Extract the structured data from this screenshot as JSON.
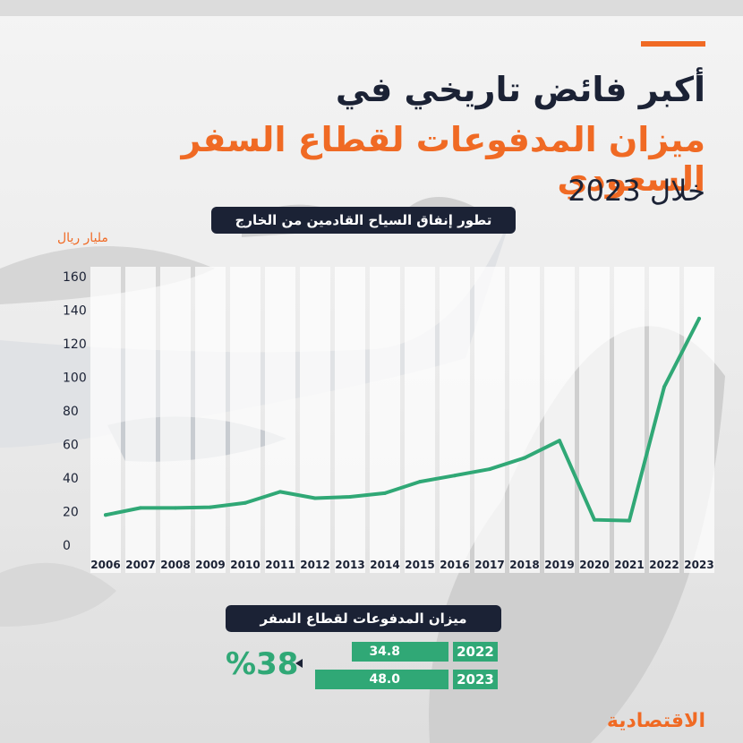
{
  "header": {
    "title_line1": "أكبر فائض تاريخي في",
    "title_line2": "ميزان المدفوعات لقطاع السفر السعودي",
    "title_line3": "خلال 2023"
  },
  "chart_label": "تطور إنفاق السياح القادمين من الخارج",
  "chart_unit": "مليار ريال",
  "chart_data": {
    "type": "line",
    "title": "تطور إنفاق السياح القادمين من الخارج",
    "ylabel": "مليار ريال",
    "xlabel": "",
    "categories": [
      "2006",
      "2007",
      "2008",
      "2009",
      "2010",
      "2011",
      "2012",
      "2013",
      "2014",
      "2015",
      "2016",
      "2017",
      "2018",
      "2019",
      "2020",
      "2021",
      "2022",
      "2023"
    ],
    "values": [
      18,
      22.2,
      22.2,
      22.6,
      25.2,
      31.8,
      28,
      28.8,
      31,
      37.8,
      41.5,
      45.3,
      52,
      62.3,
      15.1,
      14.6,
      94.3,
      135
    ],
    "ylim": [
      0,
      160
    ],
    "yticks": [
      "0",
      "20",
      "40",
      "60",
      "80",
      "100",
      "120",
      "140",
      "160"
    ],
    "grid": false,
    "line_color": "#30a876"
  },
  "balance": {
    "title": "ميزان المدفوعات لقطاع السفر",
    "rows": [
      {
        "year": "2022",
        "value": 34.8
      },
      {
        "year": "2023",
        "value": 48.0
      }
    ],
    "rows_text": [
      {
        "year": "2022",
        "value": "34.8"
      },
      {
        "year": "2023",
        "value": "48.0"
      }
    ],
    "growth": "%38",
    "bar_color": "#30a876"
  },
  "logo": "الاقتصادية",
  "colors": {
    "accent": "#f06a24",
    "navy": "#1b2235",
    "green": "#30a876"
  }
}
